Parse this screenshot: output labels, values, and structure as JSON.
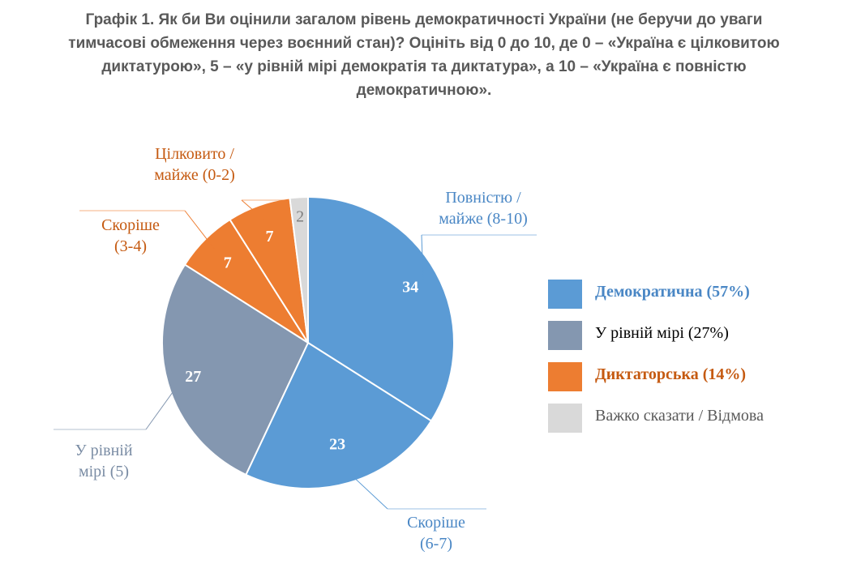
{
  "title_lines": [
    "Графік 1. Як би Ви оцінили загалом рівень демократичності України (не беручи до уваги",
    "тимчасові обмеження через воєнний стан)? Оцініть від 0 до 10, де 0 – «Україна є цілковитою",
    "диктатурою», 5 – «у рівній мірі демократія та диктатура», а 10 – «Україна є повністю",
    "демократичною»."
  ],
  "chart_data": {
    "type": "pie",
    "title": "Графік 1. Як би Ви оцінили загалом рівень демократичності України (не беручи до уваги тимчасові обмеження через воєнний стан)? Оцініть від 0 до 10, де 0 – «Україна є цілковитою диктатурою», 5 – «у рівній мірі демократія та диктатура», а 10 – «Україна є повністю демократичною».",
    "start": "12 o'clock, clockwise",
    "slices": [
      {
        "label_lines": [
          "Повністю /",
          "майже (8-10)"
        ],
        "value": 34,
        "color": "#5b9bd5",
        "label_color": "#4a87c5",
        "value_color": "#ffffff",
        "group": "Демократична (57%)"
      },
      {
        "label_lines": [
          "Скоріше",
          "(6-7)"
        ],
        "value": 23,
        "color": "#5b9bd5",
        "label_color": "#4a87c5",
        "value_color": "#ffffff",
        "group": "Демократична (57%)"
      },
      {
        "label_lines": [
          "У рівній",
          "мірі (5)"
        ],
        "value": 27,
        "color": "#8497b0",
        "label_color": "#7a8ca4",
        "value_color": "#ffffff",
        "group": "У рівній мірі (27%)"
      },
      {
        "label_lines": [
          "Скоріше",
          "(3-4)"
        ],
        "value": 7,
        "color": "#ed7d31",
        "label_color": "#c55a11",
        "value_color": "#ffffff",
        "group": "Диктаторська (14%)"
      },
      {
        "label_lines": [
          "Цілковито /",
          "майже (0-2)"
        ],
        "value": 7,
        "color": "#ed7d31",
        "label_color": "#c55a11",
        "value_color": "#ffffff",
        "group": "Диктаторська (14%)"
      },
      {
        "label_lines": [],
        "value": 2,
        "color": "#d9d9d9",
        "label_color": "#7f7f7f",
        "value_color": "#7f7f7f",
        "group": "Важко сказати / Відмова"
      }
    ],
    "legend": {
      "position": "right",
      "items": [
        {
          "label": "Демократична (57%)",
          "color": "#5b9bd5",
          "text_color": "#4a87c5",
          "bold": true
        },
        {
          "label": "У рівній мірі (27%)",
          "color": "#8497b0",
          "text_color": "#000000",
          "bold": false
        },
        {
          "label": "Диктаторська (14%)",
          "color": "#ed7d31",
          "text_color": "#c55a11",
          "bold": true
        },
        {
          "label": "Важко сказати / Відмова",
          "color": "#d9d9d9",
          "text_color": "#595959",
          "bold": false
        }
      ]
    }
  }
}
